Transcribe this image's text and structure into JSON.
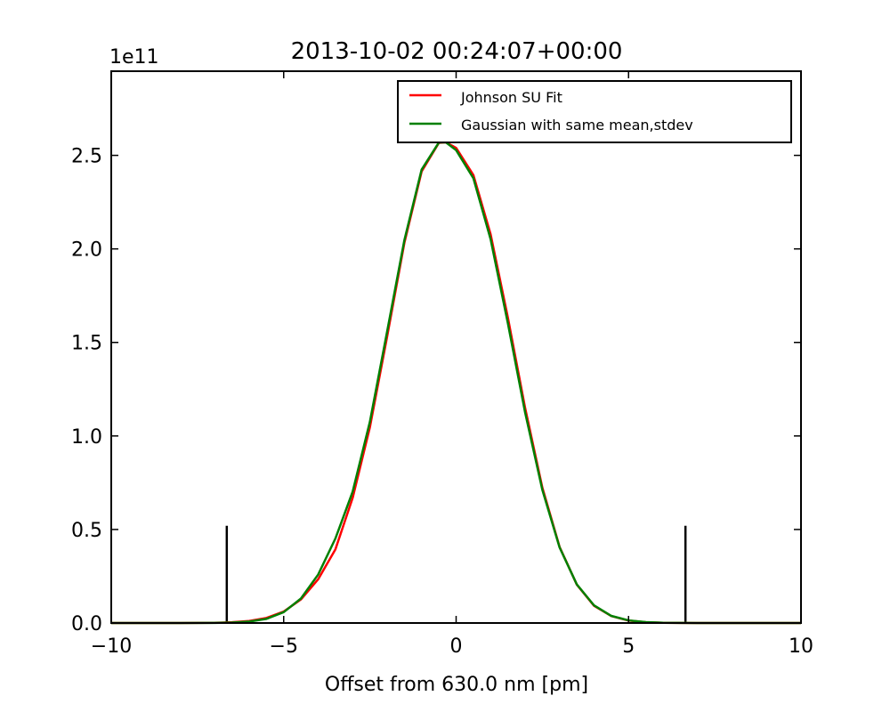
{
  "chart_data": {
    "type": "line",
    "title": "2013-10-02 00:24:07+00:00",
    "xlabel": "Offset from 630.0 nm [pm]",
    "ylabel": "",
    "y_offset_text": "1e11",
    "xlim": [
      -10,
      10
    ],
    "ylim": [
      0,
      2.95
    ],
    "x_ticks": [
      -10,
      -5,
      0,
      5,
      10
    ],
    "x_tick_labels": [
      "−10",
      "−5",
      "0",
      "5",
      "10"
    ],
    "y_ticks": [
      0.0,
      0.5,
      1.0,
      1.5,
      2.0,
      2.5
    ],
    "y_tick_labels": [
      "0.0",
      "0.5",
      "1.0",
      "1.5",
      "2.0",
      "2.5"
    ],
    "grid": false,
    "legend_position": "top-right",
    "series": [
      {
        "name": "Johnson SU Fit",
        "color": "#ff0000",
        "x": [
          -10,
          -9,
          -8,
          -7,
          -6.5,
          -6,
          -5.5,
          -5,
          -4.5,
          -4,
          -3.5,
          -3,
          -2.5,
          -2,
          -1.5,
          -1,
          -0.5,
          -0.3,
          0,
          0.5,
          1,
          1.5,
          2,
          2.5,
          3,
          3.5,
          4,
          4.5,
          5,
          5.5,
          6,
          7,
          8,
          9,
          10
        ],
        "y": [
          0,
          0,
          0.0001,
          0.0013,
          0.004,
          0.011,
          0.027,
          0.061,
          0.126,
          0.234,
          0.394,
          0.669,
          1.047,
          1.532,
          2.033,
          2.414,
          2.567,
          2.57,
          2.54,
          2.395,
          2.078,
          1.633,
          1.15,
          0.724,
          0.407,
          0.205,
          0.092,
          0.037,
          0.013,
          0.0044,
          0.0012,
          0.0001,
          0,
          0,
          0
        ]
      },
      {
        "name": "Gaussian with same mean,stdev",
        "color": "#008000",
        "x": [
          -10,
          -9,
          -8,
          -7,
          -6.5,
          -6,
          -5.5,
          -5,
          -4.5,
          -4,
          -3.5,
          -3,
          -2.5,
          -2,
          -1.5,
          -1,
          -0.5,
          -0.3,
          0,
          0.5,
          1,
          1.5,
          2,
          2.5,
          3,
          3.5,
          4,
          4.5,
          5,
          5.5,
          6,
          7,
          8,
          9,
          10
        ],
        "y": [
          0,
          0,
          0,
          0.0006,
          0.0022,
          0.0075,
          0.022,
          0.058,
          0.131,
          0.259,
          0.452,
          0.702,
          1.076,
          1.559,
          2.047,
          2.424,
          2.569,
          2.57,
          2.528,
          2.378,
          2.052,
          1.603,
          1.126,
          0.712,
          0.404,
          0.206,
          0.094,
          0.038,
          0.014,
          0.0046,
          0.0013,
          0.0001,
          0,
          0,
          0
        ]
      }
    ],
    "vertical_markers": [
      {
        "x": -6.65,
        "y_top": 0.52,
        "color": "#000000"
      },
      {
        "x": 6.65,
        "y_top": 0.52,
        "color": "#000000"
      }
    ]
  }
}
